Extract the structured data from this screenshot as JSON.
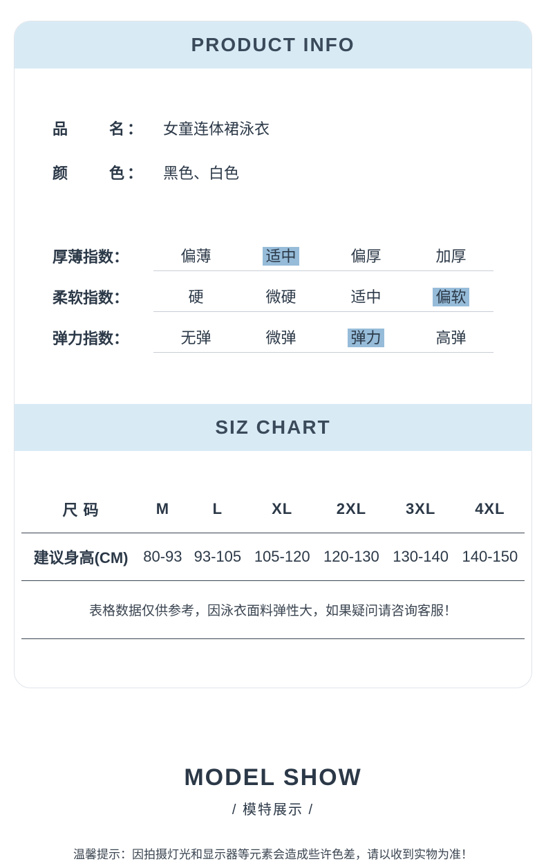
{
  "colors": {
    "section_bar_bg": "#d8ebf5",
    "highlight_bg": "#96bcd9",
    "text": "#2b3847",
    "border": "#c8ced6",
    "table_border": "#3a4450"
  },
  "product_info": {
    "header": "PRODUCT INFO",
    "rows": [
      {
        "label_a": "品",
        "label_b": "名",
        "colon": "：",
        "value": "女童连体裙泳衣"
      },
      {
        "label_a": "颜",
        "label_b": "色",
        "colon": "：",
        "value": "黑色、白色"
      }
    ]
  },
  "indices": [
    {
      "label": "厚薄指数：",
      "options": [
        "偏薄",
        "适中",
        "偏厚",
        "加厚"
      ],
      "selected": 1
    },
    {
      "label": "柔软指数：",
      "options": [
        "硬",
        "微硬",
        "适中",
        "偏软"
      ],
      "selected": 3
    },
    {
      "label": "弹力指数：",
      "options": [
        "无弹",
        "微弹",
        "弹力",
        "高弹"
      ],
      "selected": 2
    }
  ],
  "size_chart": {
    "header": "SIZ CHART",
    "row_labels": [
      "尺 码",
      "建议身高(CM)"
    ],
    "columns": [
      "M",
      "L",
      "XL",
      "2XL",
      "3XL",
      "4XL"
    ],
    "values": [
      "80-93",
      "93-105",
      "105-120",
      "120-130",
      "130-140",
      "140-150"
    ],
    "note": "表格数据仅供参考，因泳衣面料弹性大，如果疑问请咨询客服！"
  },
  "model_show": {
    "title": "MODEL SHOW",
    "subtitle": "/ 模特展示 /",
    "tip": "温馨提示：因拍摄灯光和显示器等元素会造成些许色差，请以收到实物为准！"
  }
}
